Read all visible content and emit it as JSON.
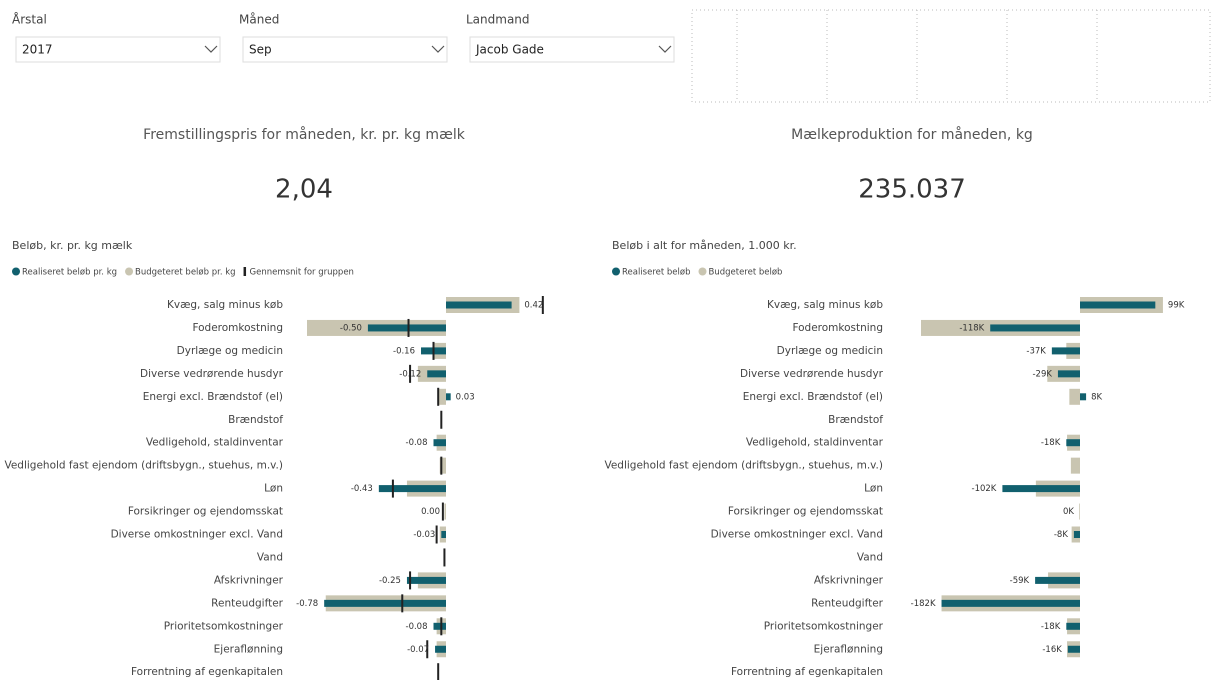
{
  "slicers": [
    {
      "label": "Årstal",
      "value": "2017"
    },
    {
      "label": "Måned",
      "value": "Sep"
    },
    {
      "label": "Landmand",
      "value": "Jacob Gade"
    }
  ],
  "cards": [
    {
      "title": "Fremstillingspris for måneden, kr. pr. kg mælk",
      "value": "2,04"
    },
    {
      "title": "Mælkeproduktion for måneden, kg",
      "value": "235.037"
    }
  ],
  "chart_data": [
    {
      "type": "bar",
      "orientation": "horizontal",
      "title": "Beløb, kr. pr. kg mælk",
      "categories": [
        "Kvæg, salg minus køb",
        "Foderomkostning",
        "Dyrlæge og medicin",
        "Diverse vedrørende husdyr",
        "Energi excl. Brændstof (el)",
        "Brændstof",
        "Vedligehold, staldinventar",
        "Vedligehold fast ejendom (driftsbygn., stuehus, m.v.)",
        "Løn",
        "Forsikringer og ejendomsskat",
        "Diverse omkostninger excl. Vand",
        "Vand",
        "Afskrivninger",
        "Renteudgifter",
        "Prioritetsomkostninger",
        "Ejeraflønning",
        "Forrentning af egenkapitalen"
      ],
      "series": [
        {
          "name": "Realiseret beløb pr. kg",
          "color": "#11606e",
          "values": [
            0.42,
            -0.5,
            -0.16,
            -0.12,
            0.03,
            null,
            -0.08,
            null,
            -0.43,
            0.0,
            -0.03,
            null,
            -0.25,
            -0.78,
            -0.08,
            -0.07,
            null
          ],
          "value_labels": [
            "0.42",
            "-0.50",
            "-0.16",
            "-0.12",
            "0.03",
            null,
            "-0.08",
            null,
            "-0.43",
            "0.00",
            "-0.03",
            null,
            "-0.25",
            "-0.78",
            "-0.08",
            "-0.07",
            null
          ]
        },
        {
          "name": "Budgeteret beløb pr. kg",
          "color": "#c9c5b1",
          "values": [
            0.47,
            -0.89,
            -0.08,
            -0.18,
            -0.05,
            null,
            -0.06,
            -0.04,
            -0.25,
            -0.01,
            -0.04,
            null,
            -0.18,
            -0.77,
            -0.06,
            -0.06,
            null
          ]
        },
        {
          "name": "Gennemsnit for gruppen",
          "color": "#222222",
          "mark": "tick",
          "values": [
            0.62,
            -0.24,
            -0.08,
            -0.23,
            -0.05,
            -0.03,
            null,
            -0.03,
            -0.34,
            -0.02,
            -0.06,
            -0.01,
            -0.23,
            -0.28,
            -0.03,
            -0.12,
            -0.05
          ]
        }
      ]
    },
    {
      "type": "bar",
      "orientation": "horizontal",
      "title": "Beløb i alt for måneden, 1.000 kr.",
      "categories": [
        "Kvæg, salg minus køb",
        "Foderomkostning",
        "Dyrlæge og medicin",
        "Diverse vedrørende husdyr",
        "Energi excl. Brændstof (el)",
        "Brændstof",
        "Vedligehold, staldinventar",
        "Vedligehold fast ejendom (driftsbygn., stuehus, m.v.)",
        "Løn",
        "Forsikringer og ejendomsskat",
        "Diverse omkostninger excl. Vand",
        "Vand",
        "Afskrivninger",
        "Renteudgifter",
        "Prioritetsomkostninger",
        "Ejeraflønning",
        "Forrentning af egenkapitalen"
      ],
      "series": [
        {
          "name": "Realiseret beløb",
          "color": "#11606e",
          "values": [
            99,
            -118,
            -37,
            -29,
            8,
            null,
            -18,
            null,
            -102,
            0,
            -8,
            null,
            -59,
            -182,
            -18,
            -16,
            null
          ],
          "value_labels": [
            "99K",
            "-118K",
            "-37K",
            "-29K",
            "8K",
            null,
            "-18K",
            null,
            "-102K",
            "0K",
            "-8K",
            null,
            "-59K",
            "-182K",
            "-18K",
            "-16K",
            null
          ]
        },
        {
          "name": "Budgeteret beløb",
          "color": "#c9c5b1",
          "values": [
            109,
            -209,
            -18,
            -43,
            -14,
            null,
            -17,
            -12,
            -58,
            -1,
            -11,
            null,
            -42,
            -182,
            -17,
            -17,
            null
          ]
        }
      ]
    }
  ]
}
